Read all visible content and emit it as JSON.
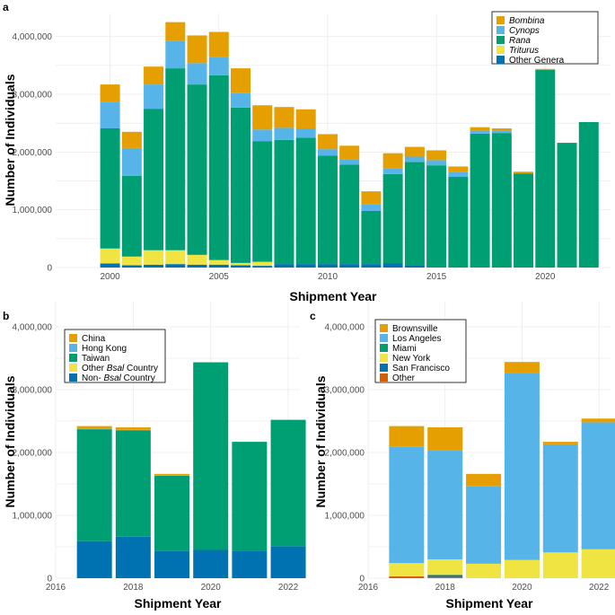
{
  "colors": {
    "orange": "#E69F00",
    "skyblue": "#56B4E9",
    "green": "#009E73",
    "yellow": "#F0E442",
    "blue": "#0072B2",
    "vermillion": "#D55E00"
  },
  "chart_data": [
    {
      "panel": "a",
      "type": "bar",
      "stacked": true,
      "xlabel": "Shipment Year",
      "ylabel": "Number of Individuals",
      "ylim": [
        0,
        4400000
      ],
      "yticks": [
        0,
        1000000,
        2000000,
        3000000,
        4000000
      ],
      "ytick_labels": [
        "0",
        "1,000,000",
        "2,000,000",
        "3,000,000",
        "4,000,000"
      ],
      "xlim": [
        1997.5,
        2023
      ],
      "xticks": [
        2000,
        2005,
        2010,
        2015,
        2020
      ],
      "xtick_labels": [
        "2000",
        "2005",
        "2010",
        "2015",
        "2020"
      ],
      "legend_position": "top-right",
      "categories": [
        2000,
        2001,
        2002,
        2003,
        2004,
        2005,
        2006,
        2007,
        2008,
        2009,
        2010,
        2011,
        2012,
        2013,
        2014,
        2015,
        2016,
        2017,
        2018,
        2019,
        2020,
        2021,
        2022
      ],
      "series": [
        {
          "name": "Other Genera",
          "italic": false,
          "color": "#0072B2",
          "values": [
            70000,
            40000,
            50000,
            60000,
            50000,
            50000,
            40000,
            30000,
            60000,
            60000,
            60000,
            60000,
            60000,
            70000,
            40000,
            0,
            0,
            0,
            0,
            0,
            0,
            0,
            0
          ]
        },
        {
          "name": "Triturus",
          "italic": true,
          "color": "#F0E442",
          "values": [
            260000,
            150000,
            250000,
            240000,
            170000,
            80000,
            40000,
            70000,
            0,
            0,
            0,
            0,
            0,
            0,
            0,
            0,
            0,
            0,
            0,
            0,
            0,
            0,
            0
          ]
        },
        {
          "name": "Rana",
          "italic": true,
          "color": "#009E73",
          "values": [
            2080000,
            1400000,
            2450000,
            3150000,
            2950000,
            3200000,
            2690000,
            2090000,
            2150000,
            2190000,
            1880000,
            1720000,
            920000,
            1550000,
            1790000,
            1770000,
            1570000,
            2320000,
            2330000,
            1630000,
            3420000,
            2160000,
            2520000
          ]
        },
        {
          "name": "Cynops",
          "italic": true,
          "color": "#56B4E9",
          "values": [
            460000,
            480000,
            420000,
            470000,
            370000,
            320000,
            250000,
            200000,
            210000,
            160000,
            110000,
            100000,
            110000,
            100000,
            90000,
            90000,
            80000,
            50000,
            40000,
            0,
            0,
            0,
            0
          ]
        },
        {
          "name": "Bombina",
          "italic": true,
          "color": "#E69F00",
          "values": [
            300000,
            280000,
            310000,
            330000,
            480000,
            430000,
            430000,
            420000,
            360000,
            330000,
            260000,
            230000,
            230000,
            260000,
            170000,
            170000,
            100000,
            60000,
            40000,
            30000,
            20000,
            0,
            0
          ]
        }
      ]
    },
    {
      "panel": "b",
      "type": "bar",
      "stacked": true,
      "xlabel": "Shipment Year",
      "ylabel": "Number of Individuals",
      "ylim": [
        0,
        4400000
      ],
      "yticks": [
        0,
        1000000,
        2000000,
        3000000,
        4000000
      ],
      "ytick_labels": [
        "0",
        "1,000,000",
        "2,000,000",
        "3,000,000",
        "4,000,000"
      ],
      "xlim": [
        2016,
        2022.3
      ],
      "xticks": [
        2016,
        2018,
        2020,
        2022
      ],
      "xtick_labels": [
        "2016",
        "2018",
        "2020",
        "2022"
      ],
      "legend_position": "top-left",
      "categories": [
        2017,
        2018,
        2019,
        2020,
        2021,
        2022
      ],
      "series": [
        {
          "name": "Non- Bsal Country",
          "color": "#0072B2",
          "values": [
            590000,
            660000,
            430000,
            450000,
            440000,
            510000
          ]
        },
        {
          "name": "Other Bsal Country",
          "color": "#F0E442",
          "values": [
            0,
            0,
            0,
            0,
            0,
            0
          ]
        },
        {
          "name": "Taiwan",
          "color": "#009E73",
          "values": [
            1780000,
            1690000,
            1200000,
            2980000,
            1730000,
            2010000
          ]
        },
        {
          "name": "Hong Kong",
          "color": "#56B4E9",
          "values": [
            10000,
            10000,
            10000,
            0,
            0,
            0
          ]
        },
        {
          "name": "China",
          "color": "#E69F00",
          "values": [
            40000,
            40000,
            20000,
            10000,
            0,
            0
          ]
        }
      ],
      "legend_items": [
        {
          "parts": [
            "China"
          ],
          "color": "#E69F00"
        },
        {
          "parts": [
            "Hong Kong"
          ],
          "color": "#56B4E9"
        },
        {
          "parts": [
            "Taiwan"
          ],
          "color": "#009E73"
        },
        {
          "parts": [
            "Other ",
            "Bsal",
            " Country"
          ],
          "italic_index": 1,
          "color": "#F0E442"
        },
        {
          "parts": [
            "Non- ",
            "Bsal",
            " Country"
          ],
          "italic_index": 1,
          "color": "#0072B2"
        }
      ]
    },
    {
      "panel": "c",
      "type": "bar",
      "stacked": true,
      "xlabel": "Shipment Year",
      "ylabel": "Number of Individuals",
      "ylim": [
        0,
        4400000
      ],
      "yticks": [
        0,
        1000000,
        2000000,
        3000000,
        4000000
      ],
      "ytick_labels": [
        "0",
        "1,000,000",
        "2,000,000",
        "3,000,000",
        "4,000,000"
      ],
      "xlim": [
        2016,
        2022.3
      ],
      "xticks": [
        2016,
        2018,
        2020,
        2022
      ],
      "xtick_labels": [
        "2016",
        "2018",
        "2020",
        "2022"
      ],
      "legend_position": "top-left",
      "categories": [
        2017,
        2018,
        2019,
        2020,
        2021,
        2022
      ],
      "series": [
        {
          "name": "Other",
          "color": "#D55E00",
          "values": [
            30000,
            20000,
            0,
            0,
            0,
            0
          ]
        },
        {
          "name": "San Francisco",
          "color": "#0072B2",
          "values": [
            0,
            30000,
            0,
            0,
            0,
            0
          ]
        },
        {
          "name": "New York",
          "color": "#F0E442",
          "values": [
            210000,
            250000,
            230000,
            290000,
            410000,
            460000
          ]
        },
        {
          "name": "Miami",
          "color": "#009E73",
          "values": [
            0,
            0,
            0,
            0,
            0,
            0
          ]
        },
        {
          "name": "Los Angeles",
          "color": "#56B4E9",
          "values": [
            1850000,
            1730000,
            1230000,
            2980000,
            1720000,
            2020000
          ]
        },
        {
          "name": "Brownsville",
          "color": "#E69F00",
          "values": [
            330000,
            370000,
            200000,
            170000,
            40000,
            60000
          ]
        }
      ],
      "legend_items": [
        {
          "parts": [
            "Brownsville"
          ],
          "color": "#E69F00"
        },
        {
          "parts": [
            "Los Angeles"
          ],
          "color": "#56B4E9"
        },
        {
          "parts": [
            "Miami"
          ],
          "color": "#009E73"
        },
        {
          "parts": [
            "New York"
          ],
          "color": "#F0E442"
        },
        {
          "parts": [
            "San Francisco"
          ],
          "color": "#0072B2"
        },
        {
          "parts": [
            "Other"
          ],
          "color": "#D55E00"
        }
      ]
    }
  ]
}
